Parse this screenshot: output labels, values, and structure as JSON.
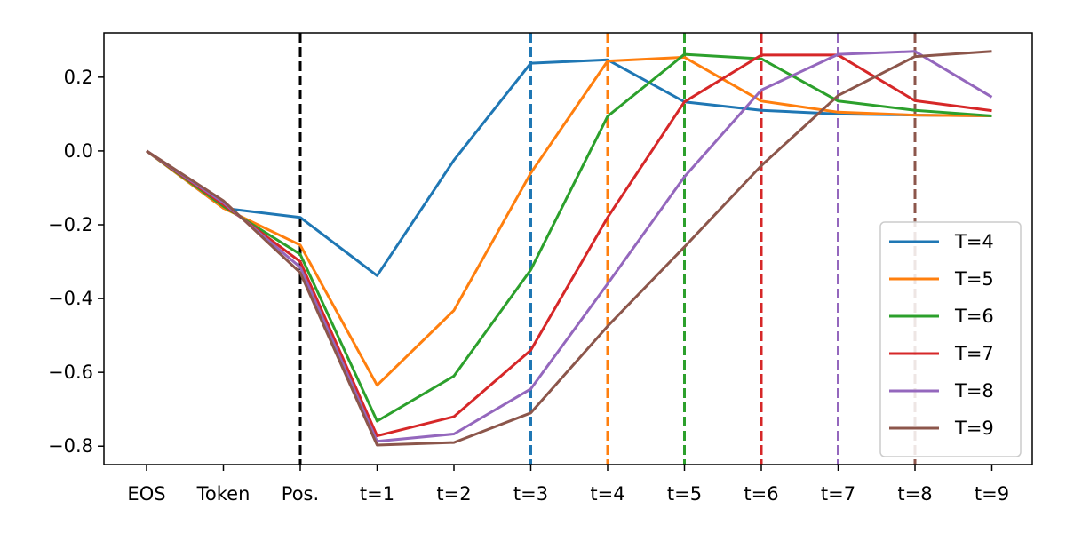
{
  "chart_data": {
    "type": "line",
    "categories": [
      "EOS",
      "Token",
      "Pos.",
      "t=1",
      "t=2",
      "t=3",
      "t=4",
      "t=5",
      "t=6",
      "t=7",
      "t=8",
      "t=9"
    ],
    "ylim": [
      -0.85,
      0.32
    ],
    "yticks": [
      0.2,
      0.0,
      -0.2,
      -0.4,
      -0.6,
      -0.8
    ],
    "ytick_labels": [
      "0.2",
      "0.0",
      "−0.2",
      "−0.4",
      "−0.6",
      "−0.8"
    ],
    "legend_position": "lower-right",
    "series": [
      {
        "name": "T=4",
        "color": "#1f77b4",
        "values": [
          0.0,
          -0.155,
          -0.18,
          -0.338,
          -0.025,
          0.238,
          0.247,
          0.133,
          0.11,
          0.1,
          0.097,
          0.095
        ]
      },
      {
        "name": "T=5",
        "color": "#ff7f0e",
        "values": [
          0.0,
          -0.155,
          -0.255,
          -0.635,
          -0.432,
          -0.06,
          0.244,
          0.254,
          0.135,
          0.105,
          0.097,
          0.095
        ]
      },
      {
        "name": "T=6",
        "color": "#2ca02c",
        "values": [
          0.0,
          -0.15,
          -0.28,
          -0.732,
          -0.61,
          -0.322,
          0.094,
          0.262,
          0.25,
          0.135,
          0.11,
          0.095
        ]
      },
      {
        "name": "T=7",
        "color": "#d62728",
        "values": [
          0.0,
          -0.145,
          -0.3,
          -0.772,
          -0.72,
          -0.54,
          -0.18,
          0.133,
          0.26,
          0.26,
          0.136,
          0.109
        ]
      },
      {
        "name": "T=8",
        "color": "#9467bd",
        "values": [
          0.0,
          -0.14,
          -0.315,
          -0.787,
          -0.767,
          -0.645,
          -0.36,
          -0.07,
          0.165,
          0.262,
          0.27,
          0.146
        ]
      },
      {
        "name": "T=9",
        "color": "#8c564b",
        "values": [
          0.0,
          -0.135,
          -0.33,
          -0.797,
          -0.79,
          -0.71,
          -0.475,
          -0.26,
          -0.04,
          0.15,
          0.256,
          0.27
        ]
      }
    ],
    "vlines": [
      {
        "category": "Pos.",
        "color": "#000000"
      },
      {
        "category": "t=3",
        "color": "#1f77b4"
      },
      {
        "category": "t=4",
        "color": "#ff7f0e"
      },
      {
        "category": "t=5",
        "color": "#2ca02c"
      },
      {
        "category": "t=6",
        "color": "#d62728"
      },
      {
        "category": "t=7",
        "color": "#9467bd"
      },
      {
        "category": "t=8",
        "color": "#8c564b"
      }
    ]
  }
}
